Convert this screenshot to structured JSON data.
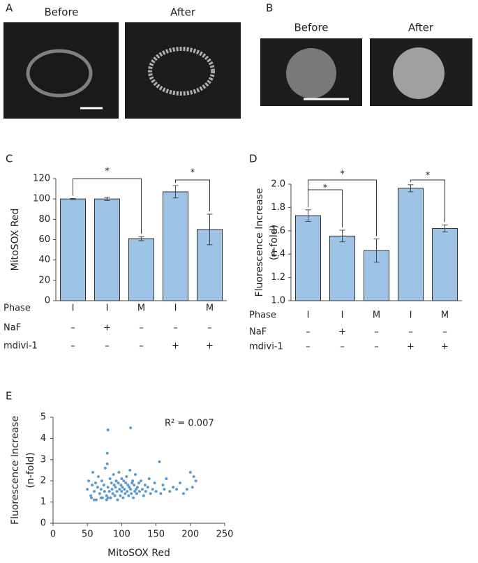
{
  "panels": {
    "labels": [
      "A",
      "B",
      "C",
      "D",
      "E"
    ],
    "image_captions": [
      "Before",
      "After",
      "Before",
      "After"
    ]
  },
  "chart_data": [
    {
      "type": "bar",
      "ylabel": "MitoSOX Red",
      "color": "#9dc3e6",
      "categories": [
        "I",
        "I",
        "M",
        "I",
        "M"
      ],
      "values": [
        100,
        100,
        61,
        107,
        70
      ],
      "errors": [
        0.5,
        1.5,
        2,
        6,
        15
      ],
      "ylim": [
        0,
        120
      ],
      "yticks": [
        0,
        20,
        40,
        60,
        80,
        100,
        120
      ],
      "rows": [
        {
          "label": "Phase"
        },
        {
          "label": "NaF",
          "values": [
            "–",
            "+",
            "–",
            "–",
            "–"
          ]
        },
        {
          "label": "mdivi-1",
          "values": [
            "–",
            "–",
            "–",
            "+",
            "+"
          ]
        }
      ],
      "annotations": [
        "*",
        "*"
      ]
    },
    {
      "type": "bar",
      "ylabel": [
        "Fluorescence Increase",
        "(n-fold)"
      ],
      "color": "#9dc3e6",
      "categories": [
        "I",
        "I",
        "M",
        "I",
        "M"
      ],
      "values": [
        1.73,
        1.555,
        1.43,
        1.965,
        1.62
      ],
      "errors": [
        0.05,
        0.05,
        0.1,
        0.03,
        0.03
      ],
      "ylim": [
        1.0,
        2.0
      ],
      "yticks": [
        {
          "value": 1.0,
          "label": "1.0"
        },
        {
          "value": 1.2,
          "label": "1.2"
        },
        {
          "value": 1.4,
          "label": "1.4"
        },
        {
          "value": 1.6,
          "label": "1.6"
        },
        {
          "value": 1.8,
          "label": "1.8"
        },
        {
          "value": 2.0,
          "label": "2.0"
        }
      ],
      "rows": [
        {
          "label": "Phase"
        },
        {
          "label": "NaF",
          "values": [
            "–",
            "+",
            "–",
            "–",
            "–"
          ]
        },
        {
          "label": "mdivi-1",
          "values": [
            "–",
            "–",
            "–",
            "+",
            "+"
          ]
        }
      ],
      "annotations": [
        "*",
        "*",
        "*"
      ]
    },
    {
      "type": "scatter",
      "xlabel": "MitoSOX Red",
      "ylabel": [
        "Fluorescence Increase",
        "(n-fold)"
      ],
      "color": "#5b9bd5",
      "xlim": [
        0,
        250
      ],
      "xticks": [
        0,
        50,
        100,
        150,
        200,
        250
      ],
      "ylim": [
        0,
        5
      ],
      "yticks": [
        0,
        1,
        2,
        3,
        4,
        5
      ],
      "annotations": [
        "R² = 0.007"
      ],
      "x": [
        50,
        52,
        55,
        57,
        58,
        60,
        62,
        63,
        65,
        66,
        68,
        70,
        71,
        72,
        74,
        75,
        76,
        78,
        79,
        80,
        80,
        82,
        83,
        84,
        85,
        86,
        87,
        88,
        89,
        90,
        91,
        92,
        93,
        94,
        95,
        96,
        97,
        98,
        99,
        100,
        100,
        101,
        102,
        103,
        104,
        105,
        106,
        107,
        108,
        109,
        110,
        111,
        112,
        113,
        114,
        115,
        116,
        117,
        118,
        119,
        120,
        121,
        122,
        123,
        125,
        126,
        128,
        130,
        132,
        134,
        135,
        138,
        140,
        142,
        145,
        148,
        150,
        155,
        157,
        160,
        162,
        165,
        170,
        175,
        180,
        185,
        190,
        195,
        200,
        203,
        205,
        208,
        79,
        80,
        113,
        78,
        56,
        60,
        70,
        90
      ],
      "y": [
        1.6,
        2.0,
        1.3,
        1.8,
        2.4,
        1.5,
        1.9,
        1.1,
        1.7,
        2.2,
        1.4,
        1.6,
        2.0,
        1.2,
        1.8,
        1.5,
        2.6,
        1.3,
        3.3,
        4.4,
        1.7,
        1.5,
        2.1,
        1.2,
        1.9,
        1.6,
        1.4,
        2.3,
        1.8,
        1.3,
        1.7,
        2.0,
        1.5,
        1.1,
        1.9,
        2.4,
        1.6,
        1.3,
        1.8,
        2.1,
        1.5,
        1.7,
        1.2,
        2.0,
        1.6,
        1.4,
        1.9,
        2.2,
        1.5,
        1.8,
        1.3,
        1.7,
        2.5,
        1.6,
        1.4,
        1.9,
        2.0,
        1.2,
        1.8,
        1.5,
        2.3,
        1.6,
        1.4,
        1.7,
        1.9,
        1.5,
        2.0,
        1.6,
        1.3,
        1.8,
        1.5,
        1.7,
        2.1,
        1.4,
        1.6,
        1.9,
        1.5,
        2.9,
        1.4,
        1.8,
        1.6,
        2.1,
        1.5,
        1.7,
        1.6,
        1.9,
        1.4,
        1.6,
        2.4,
        1.7,
        2.2,
        2.0,
        2.8,
        1.2,
        4.5,
        1.1,
        1.2,
        1.1,
        1.2,
        1.3
      ]
    }
  ]
}
